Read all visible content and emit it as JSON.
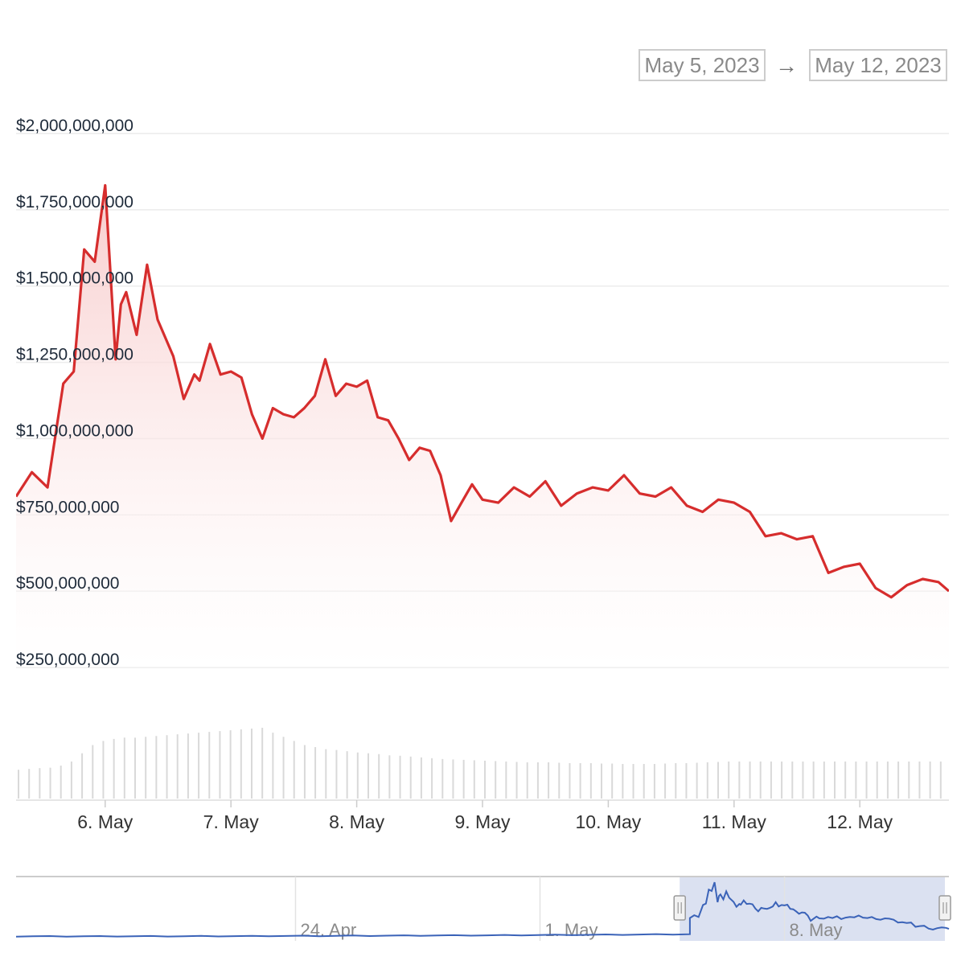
{
  "range_selector": {
    "from": "May 5, 2023",
    "arrow": "→",
    "to": "May 12, 2023"
  },
  "colors": {
    "price_line": "#d62d2d",
    "area_fill_top": "#f7c7c7",
    "volume_bar": "#d9d9d9",
    "navigator_line": "#3b63b8",
    "navigator_mask": "#d5dcee",
    "grid": "#ececec"
  },
  "chart_data": {
    "type": "area",
    "title": "",
    "xlabel": "",
    "ylabel": "",
    "x_range": [
      "2023-05-05 07:00",
      "2023-05-12 17:00"
    ],
    "ylim": [
      250000000,
      2000000000
    ],
    "y_ticks": [
      {
        "value": 2000000000,
        "label": "$2,000,000,000"
      },
      {
        "value": 1750000000,
        "label": "$1,750,000,000"
      },
      {
        "value": 1500000000,
        "label": "$1,500,000,000"
      },
      {
        "value": 1250000000,
        "label": "$1,250,000,000"
      },
      {
        "value": 1000000000,
        "label": "$1,000,000,000"
      },
      {
        "value": 750000000,
        "label": "$750,000,000"
      },
      {
        "value": 500000000,
        "label": "$500,000,000"
      },
      {
        "value": 250000000,
        "label": "$250,000,000"
      }
    ],
    "x_ticks": [
      {
        "x": "2023-05-06",
        "label": "6. May"
      },
      {
        "x": "2023-05-07",
        "label": "7. May"
      },
      {
        "x": "2023-05-08",
        "label": "8. May"
      },
      {
        "x": "2023-05-09",
        "label": "9. May"
      },
      {
        "x": "2023-05-10",
        "label": "10. May"
      },
      {
        "x": "2023-05-11",
        "label": "11. May"
      },
      {
        "x": "2023-05-12",
        "label": "12. May"
      }
    ],
    "grid": true,
    "legend": "none",
    "series": [
      {
        "x": [
          "2023-05-05 07:00",
          "2023-05-05 10:00",
          "2023-05-05 13:00",
          "2023-05-05 16:00",
          "2023-05-05 18:00",
          "2023-05-05 20:00",
          "2023-05-05 22:00",
          "2023-05-06 00:00",
          "2023-05-06 02:00",
          "2023-05-06 03:00",
          "2023-05-06 04:00",
          "2023-05-06 06:00",
          "2023-05-06 08:00",
          "2023-05-06 10:00",
          "2023-05-06 13:00",
          "2023-05-06 15:00",
          "2023-05-06 17:00",
          "2023-05-06 18:00",
          "2023-05-06 20:00",
          "2023-05-06 22:00",
          "2023-05-07 00:00",
          "2023-05-07 02:00",
          "2023-05-07 04:00",
          "2023-05-07 06:00",
          "2023-05-07 08:00",
          "2023-05-07 10:00",
          "2023-05-07 12:00",
          "2023-05-07 14:00",
          "2023-05-07 16:00",
          "2023-05-07 18:00",
          "2023-05-07 20:00",
          "2023-05-07 22:00",
          "2023-05-08 00:00",
          "2023-05-08 02:00",
          "2023-05-08 04:00",
          "2023-05-08 06:00",
          "2023-05-08 08:00",
          "2023-05-08 10:00",
          "2023-05-08 12:00",
          "2023-05-08 14:00",
          "2023-05-08 16:00",
          "2023-05-08 18:00",
          "2023-05-08 20:00",
          "2023-05-08 22:00",
          "2023-05-09 00:00",
          "2023-05-09 03:00",
          "2023-05-09 06:00",
          "2023-05-09 09:00",
          "2023-05-09 12:00",
          "2023-05-09 15:00",
          "2023-05-09 18:00",
          "2023-05-09 21:00",
          "2023-05-10 00:00",
          "2023-05-10 03:00",
          "2023-05-10 06:00",
          "2023-05-10 09:00",
          "2023-05-10 12:00",
          "2023-05-10 15:00",
          "2023-05-10 18:00",
          "2023-05-10 21:00",
          "2023-05-11 00:00",
          "2023-05-11 03:00",
          "2023-05-11 06:00",
          "2023-05-11 09:00",
          "2023-05-11 12:00",
          "2023-05-11 15:00",
          "2023-05-11 18:00",
          "2023-05-11 21:00",
          "2023-05-12 00:00",
          "2023-05-12 03:00",
          "2023-05-12 06:00",
          "2023-05-12 09:00",
          "2023-05-12 12:00",
          "2023-05-12 15:00",
          "2023-05-12 17:00"
        ],
        "values": [
          810000000,
          890000000,
          840000000,
          1180000000,
          1220000000,
          1620000000,
          1580000000,
          1830000000,
          1260000000,
          1440000000,
          1480000000,
          1340000000,
          1570000000,
          1390000000,
          1270000000,
          1130000000,
          1210000000,
          1190000000,
          1310000000,
          1210000000,
          1220000000,
          1200000000,
          1080000000,
          1000000000,
          1100000000,
          1080000000,
          1070000000,
          1100000000,
          1140000000,
          1260000000,
          1140000000,
          1180000000,
          1170000000,
          1190000000,
          1070000000,
          1060000000,
          1000000000,
          930000000,
          970000000,
          960000000,
          880000000,
          730000000,
          790000000,
          850000000,
          800000000,
          790000000,
          840000000,
          810000000,
          860000000,
          780000000,
          820000000,
          840000000,
          830000000,
          880000000,
          820000000,
          810000000,
          840000000,
          780000000,
          760000000,
          800000000,
          790000000,
          760000000,
          680000000,
          690000000,
          670000000,
          680000000,
          560000000,
          580000000,
          590000000,
          510000000,
          480000000,
          520000000,
          540000000,
          530000000,
          500000000
        ]
      }
    ],
    "volume": {
      "values": [
        70,
        72,
        74,
        75,
        80,
        90,
        110,
        130,
        140,
        145,
        148,
        148,
        150,
        152,
        154,
        156,
        158,
        160,
        162,
        164,
        166,
        168,
        170,
        172,
        160,
        150,
        140,
        130,
        125,
        120,
        118,
        115,
        112,
        110,
        108,
        105,
        104,
        102,
        100,
        98,
        96,
        95,
        94,
        93,
        92,
        91,
        90,
        89,
        88,
        88,
        88,
        87,
        86,
        86,
        86,
        85,
        85,
        84,
        84,
        84,
        84,
        85,
        86,
        86,
        87,
        88,
        89,
        90,
        90,
        90,
        90,
        90,
        90,
        90,
        90,
        90,
        90,
        90,
        90,
        90,
        90,
        90,
        90,
        90,
        90,
        90,
        90,
        90
      ]
    },
    "navigator": {
      "x_ticks": [
        {
          "x": "2023-04-24",
          "label": "24. Apr"
        },
        {
          "x": "2023-05-01",
          "label": "1. May"
        },
        {
          "x": "2023-05-08",
          "label": "8. May"
        }
      ],
      "selected_range": [
        "2023-05-05",
        "2023-05-12"
      ]
    }
  }
}
